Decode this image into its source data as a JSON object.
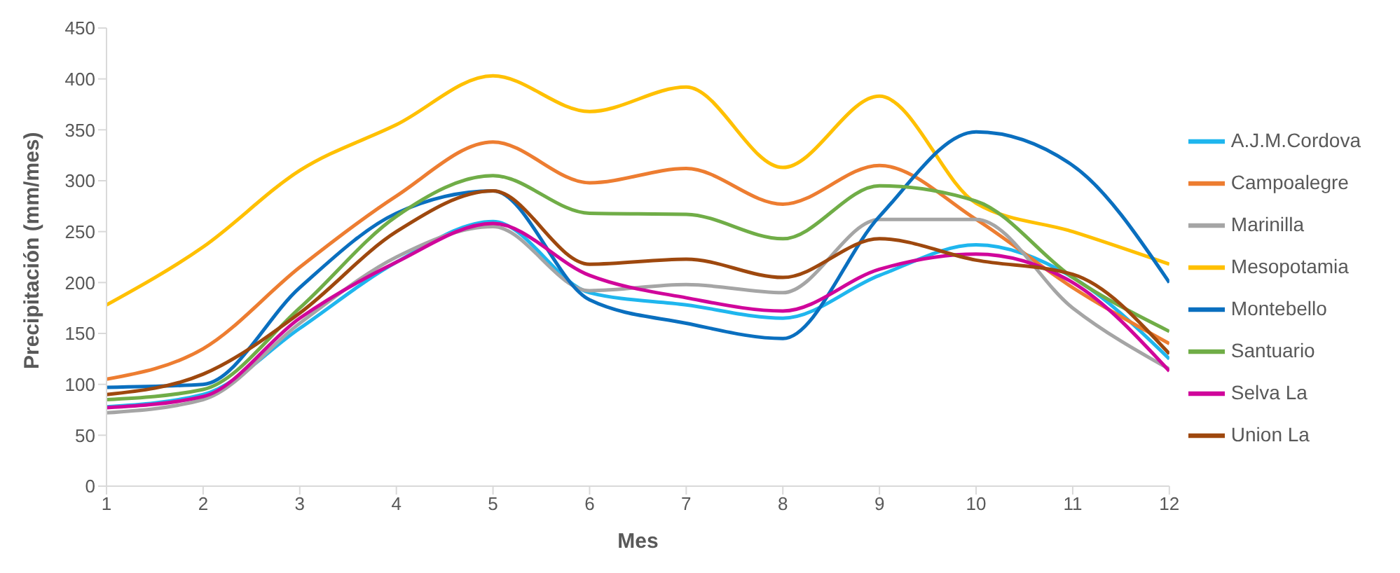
{
  "chart_data": {
    "type": "line",
    "xlabel": "Mes",
    "ylabel": "Precipitación (mm/mes)",
    "x": [
      1,
      2,
      3,
      4,
      5,
      6,
      7,
      8,
      9,
      10,
      11,
      12
    ],
    "xlim": [
      1,
      12
    ],
    "xticks": [
      1,
      2,
      3,
      4,
      5,
      6,
      7,
      8,
      9,
      10,
      11,
      12
    ],
    "ylim": [
      0,
      450
    ],
    "yticks": [
      0,
      50,
      100,
      150,
      200,
      250,
      300,
      350,
      400,
      450
    ],
    "grid": false,
    "legend": "right",
    "marker": "none",
    "line_style": "solid",
    "series": [
      {
        "name": "A.J.M.Cordova",
        "color": "#1fb6ee",
        "values": [
          78,
          90,
          155,
          220,
          260,
          190,
          178,
          165,
          207,
          237,
          205,
          125
        ]
      },
      {
        "name": "Campoalegre",
        "color": "#ed7d31",
        "values": [
          105,
          135,
          215,
          285,
          338,
          298,
          312,
          277,
          315,
          262,
          195,
          140
        ]
      },
      {
        "name": "Marinilla",
        "color": "#a5a5a5",
        "values": [
          72,
          85,
          160,
          225,
          255,
          192,
          198,
          190,
          262,
          262,
          175,
          115
        ]
      },
      {
        "name": "Mesopotamia",
        "color": "#ffc000",
        "values": [
          178,
          235,
          310,
          355,
          403,
          368,
          392,
          313,
          383,
          278,
          250,
          218
        ]
      },
      {
        "name": "Montebello",
        "color": "#0a6fbf",
        "values": [
          97,
          100,
          195,
          268,
          290,
          183,
          160,
          145,
          265,
          348,
          315,
          200
        ]
      },
      {
        "name": "Santuario",
        "color": "#70ad47",
        "values": [
          85,
          95,
          175,
          265,
          305,
          268,
          267,
          243,
          295,
          280,
          205,
          152
        ]
      },
      {
        "name": "Selva La",
        "color": "#d0069b",
        "values": [
          77,
          88,
          165,
          220,
          258,
          207,
          185,
          172,
          213,
          228,
          200,
          113
        ]
      },
      {
        "name": "Union La",
        "color": "#9e480e",
        "values": [
          90,
          110,
          170,
          250,
          290,
          218,
          223,
          205,
          243,
          222,
          208,
          130
        ]
      }
    ]
  }
}
